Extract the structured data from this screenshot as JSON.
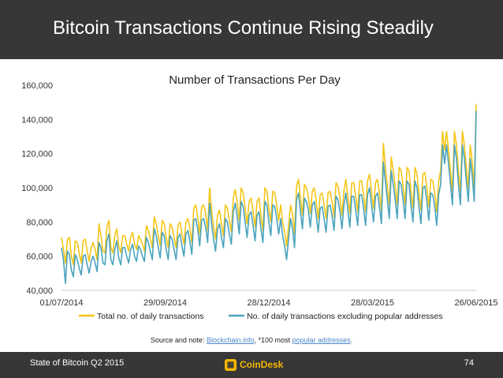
{
  "slide": {
    "title": "Bitcoin Transactions Continue Rising Steadily",
    "footer_left": "State of Bitcoin Q2 2015",
    "brand": "CoinDesk",
    "page_number": "74",
    "colors": {
      "bar": "#373737",
      "brand": "#f5b800",
      "link": "#4a86c8"
    }
  },
  "note": {
    "prefix": "Source and note: ",
    "link1": "Blockchain.info",
    "middle": ", *100 most ",
    "link2": "popular addresses",
    "suffix": "."
  },
  "chart_data": {
    "type": "line",
    "title": "Number of Transactions Per Day",
    "xlabel": "",
    "ylabel": "",
    "x_range": [
      "01/07/2014",
      "26/06/2015"
    ],
    "x_tick_labels": [
      "01/07/2014",
      "29/09/2014",
      "28/12/2014",
      "28/03/2015",
      "26/06/2015"
    ],
    "ylim": [
      40000,
      160000
    ],
    "y_tick_labels": [
      "40,000",
      "60,000",
      "80,000",
      "100,000",
      "120,000",
      "140,000",
      "160,000"
    ],
    "grid": false,
    "legend": "bottom",
    "series": [
      {
        "name": "Total no. of daily transactions",
        "color": "#f5c518",
        "values": [
          71000,
          64000,
          56000,
          70000,
          71000,
          60000,
          55000,
          69000,
          68000,
          62000,
          56000,
          69000,
          70000,
          63000,
          57000,
          65000,
          68000,
          64000,
          58000,
          79000,
          72000,
          63000,
          62000,
          77000,
          81000,
          65000,
          62000,
          72000,
          76000,
          66000,
          62000,
          72000,
          72000,
          67000,
          63000,
          71000,
          74000,
          67000,
          64000,
          72000,
          70000,
          67000,
          63000,
          78000,
          75000,
          70000,
          65000,
          83000,
          79000,
          72000,
          66000,
          81000,
          79000,
          71000,
          65000,
          79000,
          77000,
          71000,
          65000,
          78000,
          80000,
          73000,
          67000,
          80000,
          82000,
          76000,
          68000,
          88000,
          90000,
          83000,
          73000,
          89000,
          90000,
          85000,
          75000,
          100000,
          87000,
          77000,
          70000,
          84000,
          87000,
          79000,
          72000,
          90000,
          88000,
          81000,
          74000,
          94000,
          99000,
          91000,
          81000,
          100000,
          97000,
          88000,
          79000,
          92000,
          94000,
          86000,
          77000,
          92000,
          94000,
          84000,
          75000,
          100000,
          98000,
          88000,
          80000,
          98000,
          97000,
          90000,
          81000,
          90000,
          80000,
          74000,
          66000,
          78000,
          90000,
          84000,
          73000,
          101000,
          105000,
          94000,
          84000,
          102000,
          100000,
          95000,
          85000,
          98000,
          100000,
          92000,
          82000,
          96000,
          97000,
          90000,
          82000,
          97000,
          98000,
          92000,
          83000,
          103000,
          101000,
          94000,
          84000,
          98000,
          105000,
          95000,
          85000,
          103000,
          103000,
          95000,
          86000,
          104000,
          104000,
          96000,
          86000,
          104000,
          108000,
          98000,
          88000,
          103000,
          105000,
          97000,
          87000,
          126000,
          112000,
          101000,
          90000,
          118000,
          110000,
          101000,
          90000,
          112000,
          110000,
          101000,
          90000,
          112000,
          110000,
          98000,
          88000,
          112000,
          108000,
          97000,
          87000,
          108000,
          109000,
          100000,
          89000,
          105000,
          104000,
          97000,
          86000,
          104000,
          110000,
          133000,
          122000,
          133000,
          122000,
          110000,
          98000,
          133000,
          125000,
          110000,
          98000,
          133000,
          125000,
          112000,
          100000,
          125000,
          115000,
          100000,
          149000
        ]
      },
      {
        "name": "No. of daily transactions excluding popular addresses",
        "color": "#4aa3bd",
        "values": [
          65000,
          58000,
          44000,
          63000,
          61000,
          52000,
          48000,
          61000,
          58000,
          53000,
          49000,
          60000,
          61000,
          55000,
          50000,
          57000,
          60000,
          56000,
          51000,
          68000,
          65000,
          56000,
          55000,
          69000,
          73000,
          58000,
          55000,
          64000,
          69000,
          59000,
          55000,
          65000,
          65000,
          60000,
          56000,
          64000,
          67000,
          60000,
          57000,
          66000,
          64000,
          60000,
          57000,
          71000,
          68000,
          63000,
          58000,
          76000,
          72000,
          65000,
          59000,
          74000,
          72000,
          64000,
          58000,
          72000,
          70000,
          64000,
          58000,
          71000,
          73000,
          66000,
          60000,
          73000,
          75000,
          69000,
          61000,
          81000,
          82000,
          76000,
          66000,
          81000,
          82000,
          77000,
          68000,
          91000,
          79000,
          70000,
          63000,
          76000,
          79000,
          71000,
          65000,
          82000,
          80000,
          73000,
          67000,
          86000,
          91000,
          83000,
          73000,
          92000,
          89000,
          80000,
          71000,
          84000,
          86000,
          78000,
          69000,
          84000,
          86000,
          76000,
          68000,
          92000,
          90000,
          80000,
          72000,
          90000,
          89000,
          82000,
          73000,
          82000,
          72000,
          66000,
          58000,
          70000,
          82000,
          76000,
          65000,
          93000,
          97000,
          86000,
          76000,
          94000,
          92000,
          87000,
          77000,
          90000,
          92000,
          84000,
          74000,
          88000,
          89000,
          82000,
          74000,
          89000,
          90000,
          84000,
          75000,
          95000,
          93000,
          86000,
          76000,
          90000,
          97000,
          87000,
          77000,
          95000,
          95000,
          87000,
          78000,
          96000,
          96000,
          88000,
          78000,
          96000,
          100000,
          90000,
          80000,
          95000,
          97000,
          89000,
          79000,
          115000,
          104000,
          93000,
          82000,
          110000,
          102000,
          93000,
          82000,
          104000,
          102000,
          93000,
          82000,
          104000,
          102000,
          90000,
          80000,
          104000,
          100000,
          89000,
          79000,
          100000,
          101000,
          92000,
          81000,
          97000,
          96000,
          89000,
          78000,
          96000,
          102000,
          125000,
          114000,
          125000,
          114000,
          102000,
          90000,
          125000,
          117000,
          102000,
          90000,
          125000,
          117000,
          104000,
          92000,
          117000,
          107000,
          92000,
          145000
        ]
      }
    ]
  }
}
